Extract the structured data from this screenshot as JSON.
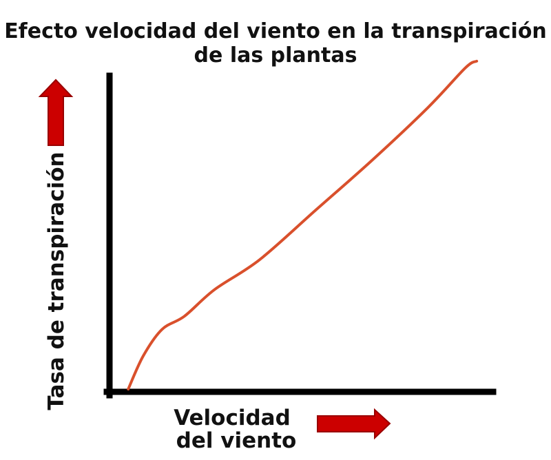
{
  "chart_data": {
    "type": "line",
    "title_line1": "Efecto velocidad del viento en la transpiración",
    "title_line2": "de las plantas",
    "xlabel_line1": "Velocidad",
    "xlabel_line2": "del viento",
    "ylabel": "Tasa de transpiración",
    "xlim": [
      0,
      100
    ],
    "ylim": [
      0,
      100
    ],
    "grid": false,
    "series": [
      {
        "color": "#d9502c",
        "x": [
          5,
          9,
          14,
          20,
          28,
          40,
          55,
          70,
          85,
          95,
          98
        ],
        "y": [
          0,
          10,
          18,
          22,
          30,
          39,
          54,
          69,
          85,
          97,
          99
        ]
      }
    ],
    "colors": {
      "axis": "#000000",
      "line": "#d9502c",
      "arrow": "#cc0000",
      "arrow_dark": "#990000"
    },
    "icons": {
      "y_arrow": "up-arrow-icon",
      "x_arrow": "right-arrow-icon"
    }
  }
}
